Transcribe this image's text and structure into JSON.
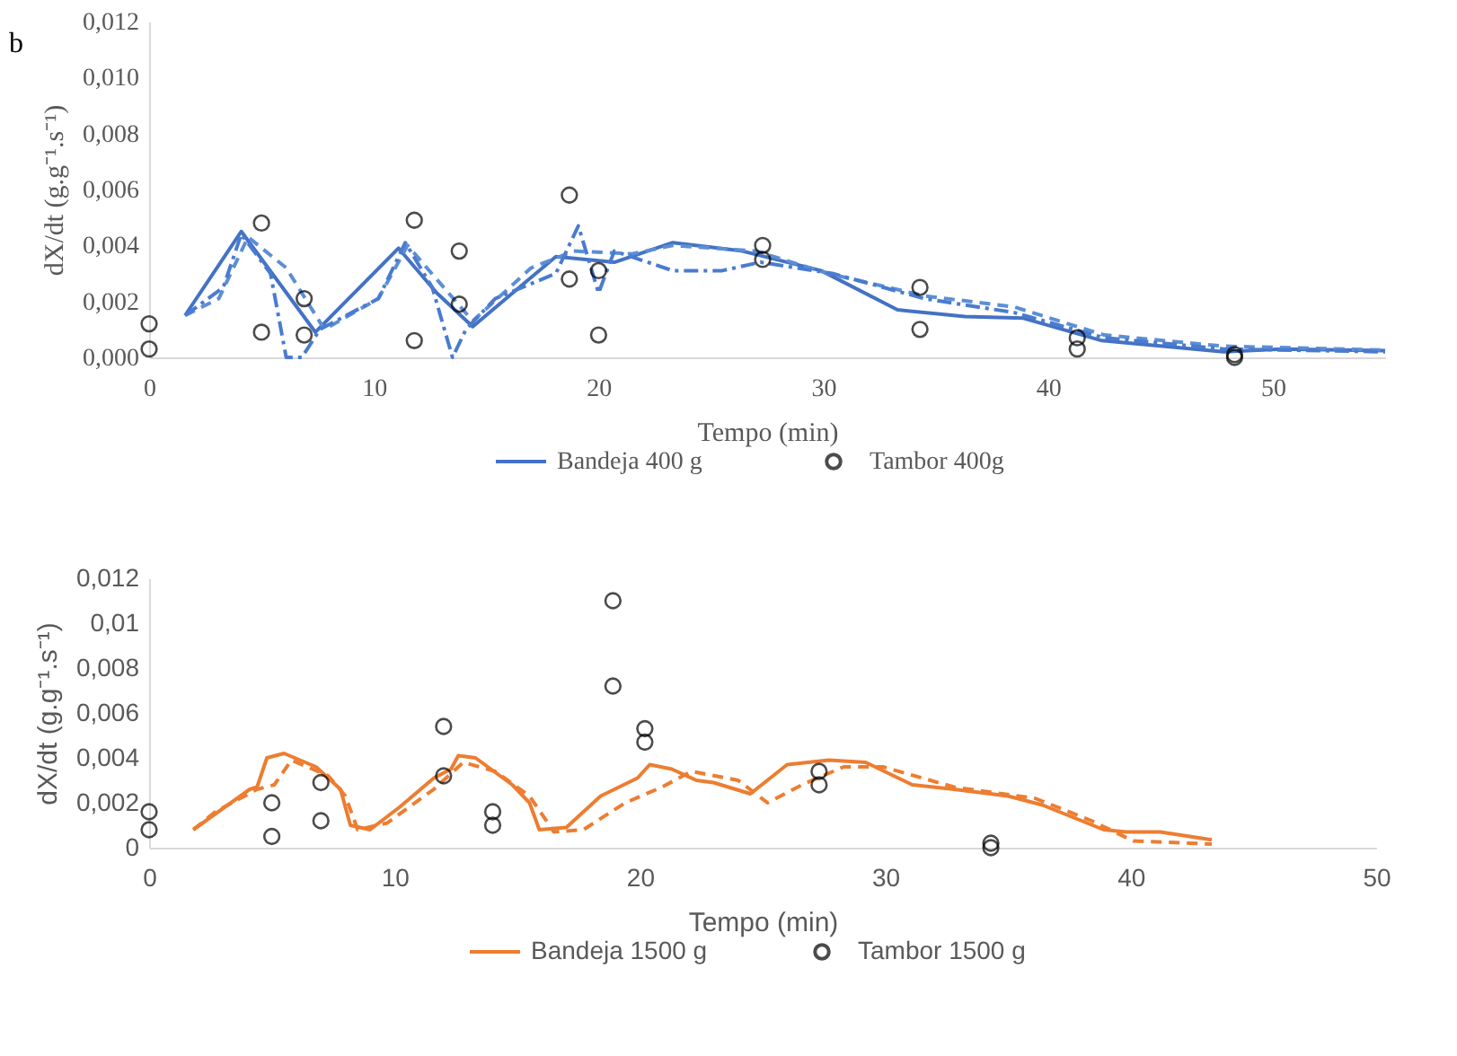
{
  "chart_data": [
    {
      "type": "line",
      "xlabel": "Tempo (min)",
      "ylabel": "dX/dt (g.g⁻¹.s⁻¹)",
      "annotations": [
        "b"
      ],
      "legend": "bottom",
      "grid": false,
      "xlim": [
        0,
        55
      ],
      "xticks": [
        0,
        10,
        20,
        30,
        40,
        50
      ],
      "ylim": [
        0,
        0.012
      ],
      "yticks": [
        {
          "value": 0,
          "label": "0,000"
        },
        {
          "value": 0.002,
          "label": "0,002"
        },
        {
          "value": 0.004,
          "label": "0,004"
        },
        {
          "value": 0.006,
          "label": "0,006"
        },
        {
          "value": 0.008,
          "label": "0,008"
        },
        {
          "value": 0.01,
          "label": "0,010"
        },
        {
          "value": 0.012,
          "label": "0,012"
        }
      ],
      "series": [
        {
          "name": "Bandeja 400 g",
          "type": "line",
          "line_style": "solid",
          "marker": "none",
          "color": "#4472c4",
          "x": [
            1.6,
            4.1,
            7.4,
            11.1,
            12.8,
            14.4,
            18.1,
            20.7,
            23.3,
            26.4,
            29.9,
            33.3,
            36.3,
            38.9,
            42.4,
            47.8,
            50.4,
            55
          ],
          "values": [
            0.0015,
            0.0045,
            0.0009,
            0.0039,
            0.0023,
            0.0011,
            0.0036,
            0.0034,
            0.0041,
            0.0038,
            0.0031,
            0.0017,
            0.00146,
            0.0014,
            0.0006,
            0.0002,
            0.0003,
            0.00024
          ]
        },
        {
          "type": "line",
          "line_style": "dashed",
          "marker": "none",
          "color": "#5b8fd6",
          "x": [
            1.6,
            3.1,
            4.4,
            6.1,
            7.8,
            10.2,
            11.5,
            14.4,
            17,
            18.9,
            21.5,
            23.3,
            27,
            30.2,
            34.5,
            38.5,
            42.5,
            47.8,
            55
          ],
          "values": [
            0.0015,
            0.0021,
            0.0043,
            0.0032,
            0.001,
            0.0021,
            0.004,
            0.0013,
            0.0032,
            0.0038,
            0.0037,
            0.004,
            0.0038,
            0.003,
            0.0022,
            0.0018,
            0.0008,
            0.0004,
            0.00026
          ]
        },
        {
          "type": "line",
          "line_style": "dashdot",
          "marker": "none",
          "color": "#4a7bd0",
          "x": [
            1.6,
            3.3,
            4.1,
            5.4,
            6.1,
            6.8,
            7.6,
            10.2,
            11.4,
            12.6,
            13.5,
            14.1,
            15.4,
            18.1,
            19.1,
            20,
            20.7,
            23.3,
            25.5,
            27.2,
            30.4,
            34.5,
            38.5,
            42.5,
            47.8,
            55
          ],
          "values": [
            0.0015,
            0.0025,
            0.0044,
            0.003,
            0,
            0,
            0.001,
            0.0021,
            0.0041,
            0.0025,
            0,
            0.001,
            0.0021,
            0.003,
            0.0047,
            0.0023,
            0.0038,
            0.0031,
            0.0031,
            0.0034,
            0.003,
            0.0021,
            0.0016,
            0.0007,
            0.0003,
            0.0002
          ]
        },
        {
          "name": "Tambor 400g",
          "type": "scatter",
          "marker": "circle",
          "color": "#000000",
          "x": [
            0,
            0,
            5,
            5,
            6.9,
            6.9,
            11.8,
            11.8,
            13.8,
            13.8,
            18.7,
            18.7,
            20,
            20,
            27.3,
            27.3,
            34.3,
            34.3,
            41.3,
            41.3,
            48.3,
            48.3
          ],
          "values": [
            0.0012,
            0.0003,
            0.0048,
            0.0009,
            0.0021,
            0.0008,
            0.0049,
            0.0006,
            0.0038,
            0.0019,
            0.0058,
            0.0028,
            0.0031,
            0.0008,
            0.004,
            0.0035,
            0.0025,
            0.001,
            0.0007,
            0.0003,
            0.0001,
            0
          ]
        }
      ]
    },
    {
      "type": "line",
      "xlabel": "Tempo (min)",
      "ylabel": "dX/dt (g.g⁻¹.s⁻¹)",
      "legend": "bottom",
      "grid": false,
      "xlim": [
        0,
        50
      ],
      "xticks": [
        0,
        10,
        20,
        30,
        40,
        50
      ],
      "ylim": [
        0,
        0.012
      ],
      "yticks": [
        {
          "value": 0,
          "label": "0"
        },
        {
          "value": 0.002,
          "label": "0,002"
        },
        {
          "value": 0.004,
          "label": "0,004"
        },
        {
          "value": 0.006,
          "label": "0,006"
        },
        {
          "value": 0.008,
          "label": "0,008"
        },
        {
          "value": 0.01,
          "label": "0,01"
        },
        {
          "value": 0.012,
          "label": "0,012"
        }
      ],
      "series": [
        {
          "name": "Bandeja 1500 g",
          "type": "line",
          "line_style": "solid",
          "marker": "none",
          "color": "#ed7d31",
          "x": [
            1.8,
            4.1,
            4.4,
            4.8,
            5.5,
            6.8,
            7.8,
            8.2,
            9,
            10.2,
            11.6,
            12.3,
            12.6,
            13.3,
            14.8,
            15.5,
            15.9,
            17,
            18.4,
            19.9,
            20.4,
            21.3,
            22.3,
            23,
            24.5,
            26,
            27.7,
            29.2,
            31.1,
            32.8,
            35,
            36.4,
            38.9,
            39.8,
            41.2,
            43.3
          ],
          "values": [
            0.0008,
            0.0026,
            0.0027,
            0.004,
            0.0042,
            0.0036,
            0.0026,
            0.001,
            0.0008,
            0.0018,
            0.0031,
            0.0035,
            0.0041,
            0.004,
            0.0028,
            0.002,
            0.0008,
            0.0009,
            0.0023,
            0.0031,
            0.0037,
            0.0035,
            0.003,
            0.0029,
            0.0024,
            0.0037,
            0.0039,
            0.0038,
            0.0028,
            0.0026,
            0.0023,
            0.0019,
            0.0008,
            0.0007,
            0.0007,
            0.00035
          ]
        },
        {
          "type": "line",
          "line_style": "dashed",
          "marker": "none",
          "color": "#ed7d31",
          "x": [
            1.8,
            2.7,
            4.4,
            5.1,
            5.8,
            7.3,
            8,
            8.5,
            9.7,
            11.6,
            12.8,
            14.1,
            15.5,
            16.5,
            17.7,
            19.4,
            20.9,
            22.1,
            24,
            25.2,
            26.6,
            28.3,
            29.9,
            32.8,
            36.1,
            38.4,
            40.1,
            43.3
          ],
          "values": [
            0.0008,
            0.0016,
            0.0026,
            0.0028,
            0.0039,
            0.0032,
            0.0023,
            0.0008,
            0.0011,
            0.0026,
            0.0038,
            0.0034,
            0.0023,
            0.0007,
            0.0008,
            0.002,
            0.0027,
            0.0034,
            0.003,
            0.002,
            0.0028,
            0.0036,
            0.0036,
            0.0027,
            0.0022,
            0.0012,
            0.0003,
            0.00016
          ]
        },
        {
          "name": "Tambor 1500 g",
          "type": "scatter",
          "marker": "circle",
          "color": "#000000",
          "x": [
            0,
            0,
            5,
            5,
            7,
            7,
            12,
            12,
            14,
            14,
            18.9,
            18.9,
            20.2,
            20.2,
            27.3,
            27.3,
            34.3,
            34.3
          ],
          "values": [
            0.0016,
            0.0008,
            0.002,
            0.0005,
            0.0029,
            0.0012,
            0.0054,
            0.0032,
            0.0016,
            0.001,
            0.011,
            0.0072,
            0.0053,
            0.0047,
            0.0034,
            0.0028,
            0.0002,
            0
          ]
        }
      ]
    }
  ]
}
